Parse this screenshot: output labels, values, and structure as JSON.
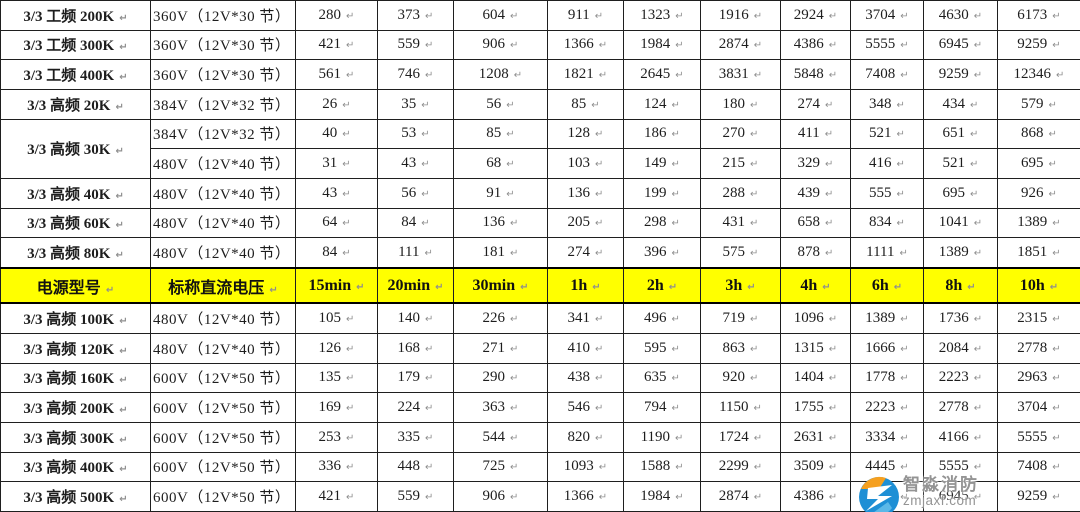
{
  "marks": {
    "return": "↵"
  },
  "colors": {
    "model_text": "#EE7216",
    "header_bg": "#FFFF00",
    "border": "#1F1F1F",
    "watermark_text": "#949494",
    "watermark_blue": "#1E8FD5",
    "watermark_orange": "#F5A020"
  },
  "table": {
    "header": {
      "model_col": "电源型号",
      "voltage_col": "标称直流电压",
      "time_cols": [
        "15min",
        "20min",
        "30min",
        "1h",
        "2h",
        "3h",
        "4h",
        "6h",
        "8h",
        "10h"
      ]
    },
    "top_rows": [
      {
        "model": "3/3 工频 200K",
        "voltage": "360V（12V*30 节）",
        "values": [
          280,
          373,
          604,
          911,
          1323,
          1916,
          2924,
          3704,
          4630,
          6173
        ]
      },
      {
        "model": "3/3 工频 300K",
        "voltage": "360V（12V*30 节）",
        "values": [
          421,
          559,
          906,
          1366,
          1984,
          2874,
          4386,
          5555,
          6945,
          9259
        ]
      },
      {
        "model": "3/3 工频 400K",
        "voltage": "360V（12V*30 节）",
        "values": [
          561,
          746,
          1208,
          1821,
          2645,
          3831,
          5848,
          7408,
          9259,
          12346
        ]
      },
      {
        "model": "3/3 高频 20K",
        "voltage": "384V（12V*32 节）",
        "values": [
          26,
          35,
          56,
          85,
          124,
          180,
          274,
          348,
          434,
          579
        ]
      },
      {
        "model": "3/3 高频 30K",
        "rowspan": 2,
        "voltage": "384V（12V*32 节）",
        "values": [
          40,
          53,
          85,
          128,
          186,
          270,
          411,
          521,
          651,
          868
        ]
      },
      {
        "model": null,
        "voltage": "480V（12V*40 节）",
        "values": [
          31,
          43,
          68,
          103,
          149,
          215,
          329,
          416,
          521,
          695
        ]
      },
      {
        "model": "3/3 高频 40K",
        "voltage": "480V（12V*40 节）",
        "values": [
          43,
          56,
          91,
          136,
          199,
          288,
          439,
          555,
          695,
          926
        ]
      },
      {
        "model": "3/3 高频 60K",
        "voltage": "480V（12V*40 节）",
        "values": [
          64,
          84,
          136,
          205,
          298,
          431,
          658,
          834,
          1041,
          1389
        ]
      },
      {
        "model": "3/3 高频 80K",
        "voltage": "480V（12V*40 节）",
        "values": [
          84,
          111,
          181,
          274,
          396,
          575,
          878,
          1111,
          1389,
          1851
        ]
      }
    ],
    "bottom_rows": [
      {
        "model": "3/3 高频 100K",
        "voltage": "480V（12V*40 节）",
        "values": [
          105,
          140,
          226,
          341,
          496,
          719,
          1096,
          1389,
          1736,
          2315
        ]
      },
      {
        "model": "3/3 高频 120K",
        "voltage": "480V（12V*40 节）",
        "values": [
          126,
          168,
          271,
          410,
          595,
          863,
          1315,
          1666,
          2084,
          2778
        ]
      },
      {
        "model": "3/3 高频 160K",
        "voltage": "600V（12V*50 节）",
        "values": [
          135,
          179,
          290,
          438,
          635,
          920,
          1404,
          1778,
          2223,
          2963
        ]
      },
      {
        "model": "3/3 高频 200K",
        "voltage": "600V（12V*50 节）",
        "values": [
          169,
          224,
          363,
          546,
          794,
          1150,
          1755,
          2223,
          2778,
          3704
        ]
      },
      {
        "model": "3/3 高频 300K",
        "voltage": "600V（12V*50 节）",
        "values": [
          253,
          335,
          544,
          820,
          1190,
          1724,
          2631,
          3334,
          4166,
          5555
        ]
      },
      {
        "model": "3/3 高频 400K",
        "voltage": "600V（12V*50 节）",
        "values": [
          336,
          448,
          725,
          1093,
          1588,
          2299,
          3509,
          4445,
          5555,
          7408
        ]
      },
      {
        "model": "3/3 高频 500K",
        "voltage": "600V（12V*50 节）",
        "values": [
          421,
          559,
          906,
          1366,
          1984,
          2874,
          4386,
          5555,
          6945,
          9259
        ]
      }
    ]
  },
  "watermark": {
    "name": "智淼消防",
    "url": "zmjaxf.com"
  }
}
